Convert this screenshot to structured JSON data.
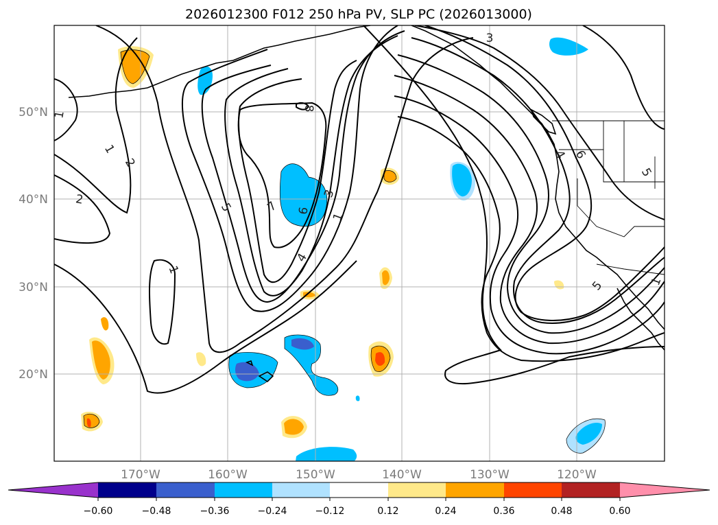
{
  "title": "2026012300 F012 250 hPa PV, SLP PC (2026013000)",
  "map": {
    "lon_ticks": [
      "170°W",
      "160°W",
      "150°W",
      "140°W",
      "130°W",
      "120°W"
    ],
    "lat_ticks": [
      "50°N",
      "40°N",
      "30°N",
      "20°N"
    ]
  },
  "colorbar": {
    "ticks": [
      "−0.60",
      "−0.48",
      "−0.36",
      "−0.24",
      "−0.12",
      "0.12",
      "0.24",
      "0.36",
      "0.48",
      "0.60"
    ],
    "colors": {
      "under": "#9932cc",
      "c1": "#00008b",
      "c2": "#3a5fcd",
      "c3": "#00bfff",
      "c4": "#b0e2ff",
      "c5": "#ffffff",
      "c6": "#ffe98a",
      "c7": "#ffa500",
      "c8": "#ff4500",
      "c9": "#b22222",
      "over": "#ff8fab"
    }
  },
  "contour_labels": [
    "1",
    "1",
    "1",
    "2",
    "2",
    "5",
    "1",
    "7",
    "6",
    "3",
    "1",
    "4",
    "8",
    "3",
    "4",
    "6",
    "5",
    "5",
    "1"
  ]
}
